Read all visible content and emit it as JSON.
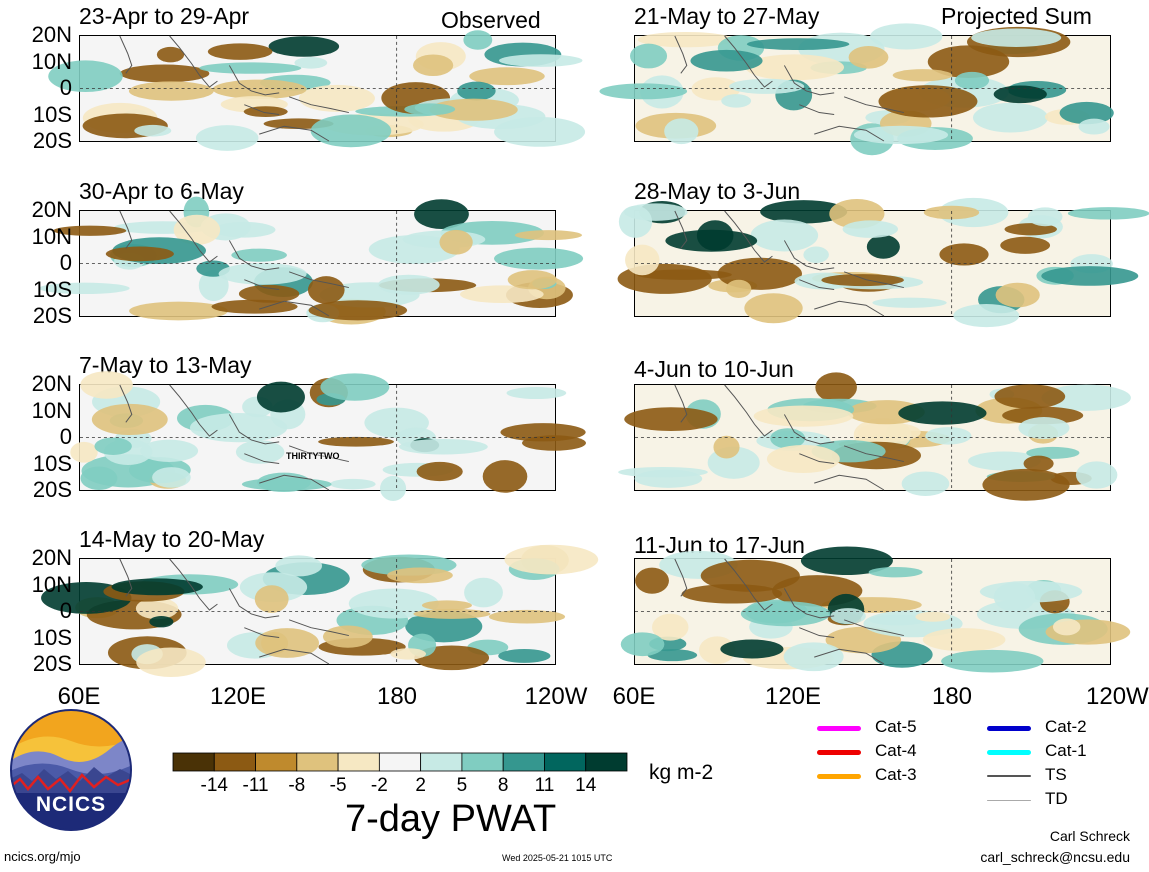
{
  "panels": [
    {
      "id": "p1",
      "title": "23-Apr to 29-Apr",
      "tag": "Observed"
    },
    {
      "id": "p2",
      "title": "30-Apr to 6-May",
      "tag": ""
    },
    {
      "id": "p3",
      "title": "7-May to 13-May",
      "tag": "",
      "annotation": "THIRTYTWO"
    },
    {
      "id": "p4",
      "title": "14-May to 20-May",
      "tag": ""
    },
    {
      "id": "p5",
      "title": "21-May to 27-May",
      "tag": "Projected Sum"
    },
    {
      "id": "p6",
      "title": "28-May to 3-Jun",
      "tag": ""
    },
    {
      "id": "p7",
      "title": "4-Jun to 10-Jun",
      "tag": ""
    },
    {
      "id": "p8",
      "title": "11-Jun to 17-Jun",
      "tag": ""
    }
  ],
  "lat_labels": [
    "20N",
    "10N",
    "0",
    "10S",
    "20S"
  ],
  "lon_labels_left": [
    "60E",
    "120E",
    "180",
    "120W"
  ],
  "lon_labels_right": [
    "60E",
    "120E",
    "180",
    "120W"
  ],
  "colorbar": {
    "title": "7-day PWAT",
    "units": "kg m-2",
    "tick_labels": [
      "-14",
      "-11",
      "-8",
      "-5",
      "-2",
      "2",
      "5",
      "8",
      "11",
      "14"
    ],
    "colors": [
      "#4a3206",
      "#8c5a13",
      "#bf8a2d",
      "#dfc27d",
      "#f6e8c3",
      "#f5f5f5",
      "#c7eae5",
      "#80cdc1",
      "#35978f",
      "#01665e",
      "#003c30"
    ]
  },
  "legend": {
    "items": [
      {
        "label": "Cat-5",
        "color": "#ff00ff"
      },
      {
        "label": "Cat-4",
        "color": "#ee0000"
      },
      {
        "label": "Cat-3",
        "color": "#ffa500"
      },
      {
        "label": "Cat-2",
        "color": "#0000cc"
      },
      {
        "label": "Cat-1",
        "color": "#00ffff"
      },
      {
        "label": "TS",
        "color": "#555555"
      },
      {
        "label": "TD",
        "color": "#aaaaaa"
      }
    ]
  },
  "logo": {
    "text": "NCICS"
  },
  "footer": {
    "site": "ncics.org/mjo",
    "timestamp": "Wed 2025-05-21 1015 UTC",
    "author": "Carl Schreck",
    "email": "carl_schreck@ncsu.edu"
  }
}
